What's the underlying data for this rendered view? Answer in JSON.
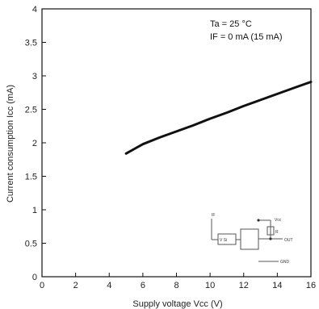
{
  "chart_data": {
    "type": "line",
    "xlabel": "Supply voltage Vcc (V)",
    "ylabel": "Current consumption Icc (mA)",
    "xlim": [
      0,
      16
    ],
    "ylim": [
      0,
      4
    ],
    "x_ticks": [
      "0",
      "2",
      "4",
      "6",
      "8",
      "10",
      "12",
      "14",
      "16"
    ],
    "y_ticks": [
      "0",
      "0.5",
      "1",
      "1.5",
      "2",
      "2.5",
      "3",
      "3.5",
      "4"
    ],
    "grid": false,
    "annotations": [
      "Ta = 25 °C",
      "IF = 0 mA (15 mA)"
    ],
    "series": [
      {
        "x": [
          5.0,
          5.5,
          6.0,
          7.0,
          8.0,
          9.0,
          10.0,
          11.0,
          12.0,
          13.0,
          14.0,
          15.0,
          16.0
        ],
        "y": [
          1.84,
          1.91,
          1.98,
          2.08,
          2.17,
          2.26,
          2.36,
          2.45,
          2.55,
          2.64,
          2.73,
          2.82,
          2.91
        ],
        "color": "#111111"
      }
    ],
    "inset": {
      "labels": [
        "IF",
        "Vcc",
        "R",
        "OUT",
        "GND",
        "V Si"
      ]
    }
  }
}
